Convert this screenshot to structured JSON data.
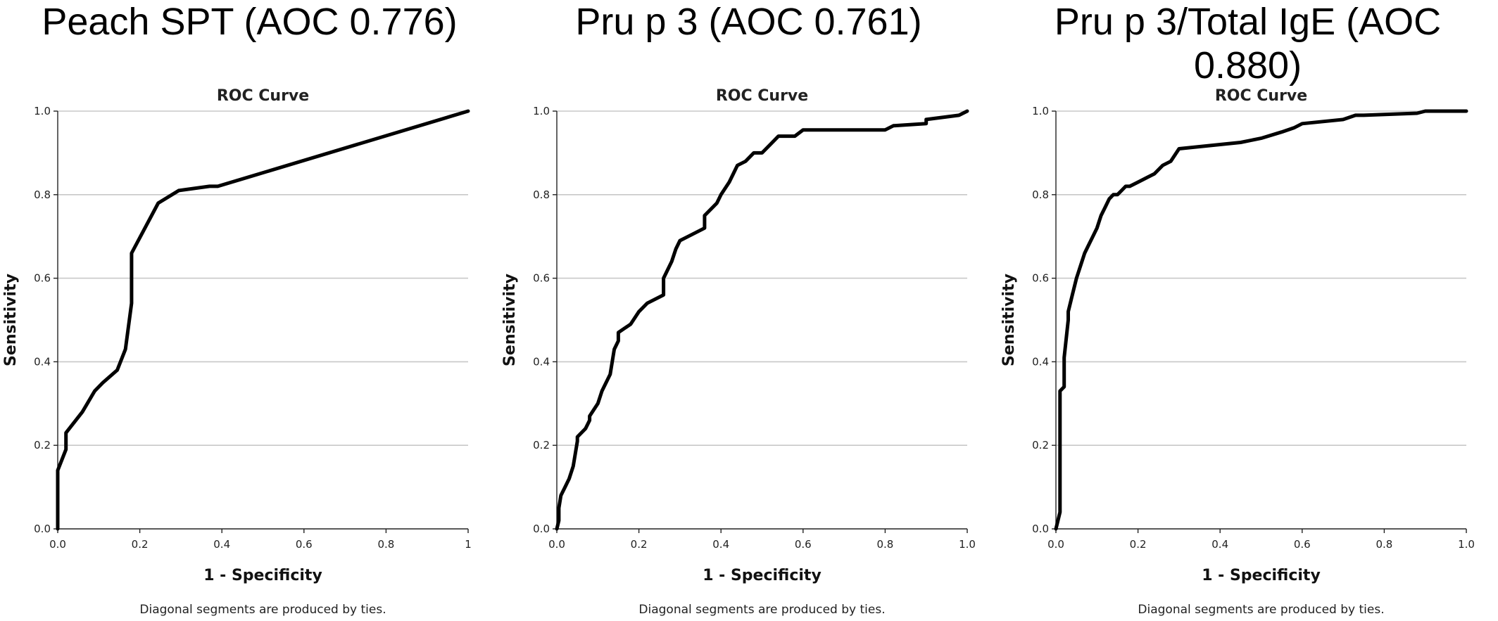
{
  "panels": [
    {
      "heading": "Peach SPT (AOC 0.776)",
      "chart_data": {
        "type": "line",
        "title": "ROC Curve",
        "xlabel": "1 - Specificity",
        "ylabel": "Sensitivity",
        "xlim": [
          0,
          1
        ],
        "ylim": [
          0,
          1
        ],
        "xticks": [
          "0.0",
          "0.2",
          "0.4",
          "0.6",
          "0.8",
          "1"
        ],
        "yticks": [
          "0.0",
          "0.2",
          "0.4",
          "0.6",
          "0.8",
          "1.0"
        ],
        "grid": "horizontal",
        "footnote": "Diagonal segments are produced by ties.",
        "series": [
          {
            "x": [
              0,
              0,
              0.02,
              0.02,
              0.06,
              0.09,
              0.11,
              0.145,
              0.165,
              0.18,
              0.18,
              0.245,
              0.295,
              0.37,
              0.39,
              1.0
            ],
            "y": [
              0,
              0.14,
              0.19,
              0.23,
              0.28,
              0.33,
              0.35,
              0.38,
              0.43,
              0.54,
              0.66,
              0.78,
              0.81,
              0.82,
              0.82,
              1.0
            ]
          }
        ]
      }
    },
    {
      "heading": "Pru p 3 (AOC 0.761)",
      "chart_data": {
        "type": "line",
        "title": "ROC Curve",
        "xlabel": "1 - Specificity",
        "ylabel": "Sensitivity",
        "xlim": [
          0,
          1
        ],
        "ylim": [
          0,
          1
        ],
        "xticks": [
          "0.0",
          "0.2",
          "0.4",
          "0.6",
          "0.8",
          "1.0"
        ],
        "yticks": [
          "0.0",
          "0.2",
          "0.4",
          "0.6",
          "0.8",
          "1.0"
        ],
        "grid": "horizontal",
        "footnote": "Diagonal segments are produced by ties.",
        "series": [
          {
            "x": [
              0,
              0.005,
              0.005,
              0.01,
              0.02,
              0.03,
              0.04,
              0.05,
              0.05,
              0.07,
              0.08,
              0.08,
              0.1,
              0.11,
              0.13,
              0.14,
              0.15,
              0.15,
              0.18,
              0.2,
              0.22,
              0.26,
              0.26,
              0.28,
              0.29,
              0.3,
              0.32,
              0.36,
              0.36,
              0.37,
              0.39,
              0.4,
              0.42,
              0.43,
              0.44,
              0.46,
              0.48,
              0.5,
              0.52,
              0.54,
              0.58,
              0.6,
              0.8,
              0.82,
              0.9,
              0.9,
              0.98,
              1.0
            ],
            "y": [
              0,
              0.02,
              0.05,
              0.08,
              0.1,
              0.12,
              0.15,
              0.21,
              0.22,
              0.24,
              0.26,
              0.27,
              0.3,
              0.33,
              0.37,
              0.43,
              0.45,
              0.47,
              0.49,
              0.52,
              0.54,
              0.56,
              0.6,
              0.64,
              0.67,
              0.69,
              0.7,
              0.72,
              0.75,
              0.76,
              0.78,
              0.8,
              0.83,
              0.85,
              0.87,
              0.88,
              0.9,
              0.9,
              0.92,
              0.94,
              0.94,
              0.955,
              0.955,
              0.965,
              0.97,
              0.98,
              0.99,
              1.0
            ]
          }
        ]
      }
    },
    {
      "heading": "Pru p 3/Total IgE (AOC 0.880)",
      "chart_data": {
        "type": "line",
        "title": "ROC Curve",
        "xlabel": "1 - Specificity",
        "ylabel": "Sensitivity",
        "xlim": [
          0,
          1
        ],
        "ylim": [
          0,
          1
        ],
        "xticks": [
          "0.0",
          "0.2",
          "0.4",
          "0.6",
          "0.8",
          "1.0"
        ],
        "yticks": [
          "0.0",
          "0.2",
          "0.4",
          "0.6",
          "0.8",
          "1.0"
        ],
        "grid": "horizontal",
        "footnote": "Diagonal segments are produced by ties.",
        "series": [
          {
            "x": [
              0,
              0.005,
              0.01,
              0.01,
              0.02,
              0.02,
              0.03,
              0.03,
              0.04,
              0.05,
              0.06,
              0.07,
              0.08,
              0.09,
              0.1,
              0.11,
              0.12,
              0.13,
              0.14,
              0.15,
              0.16,
              0.17,
              0.18,
              0.2,
              0.22,
              0.24,
              0.26,
              0.28,
              0.3,
              0.3,
              0.35,
              0.4,
              0.45,
              0.5,
              0.55,
              0.58,
              0.6,
              0.7,
              0.73,
              0.75,
              0.88,
              0.9,
              1.0
            ],
            "y": [
              0,
              0.02,
              0.04,
              0.33,
              0.34,
              0.41,
              0.5,
              0.52,
              0.56,
              0.6,
              0.63,
              0.66,
              0.68,
              0.7,
              0.72,
              0.75,
              0.77,
              0.79,
              0.8,
              0.8,
              0.81,
              0.82,
              0.82,
              0.83,
              0.84,
              0.85,
              0.87,
              0.88,
              0.91,
              0.91,
              0.915,
              0.92,
              0.925,
              0.935,
              0.95,
              0.96,
              0.97,
              0.98,
              0.99,
              0.99,
              0.995,
              1.0,
              1.0
            ]
          }
        ]
      }
    }
  ]
}
